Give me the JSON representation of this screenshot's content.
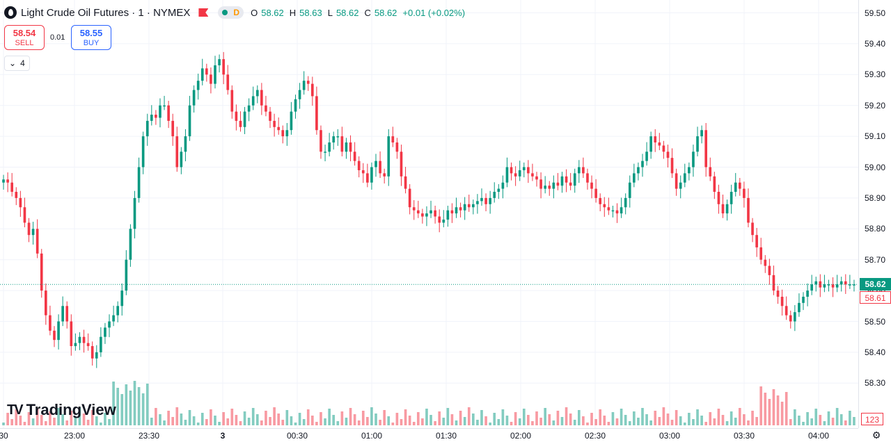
{
  "header": {
    "symbol_title": "Light Crude Oil Futures · 1 · NYMEX",
    "status_delayed": "D",
    "ohlc": [
      {
        "k": "O",
        "v": "58.62"
      },
      {
        "k": "H",
        "v": "58.63"
      },
      {
        "k": "L",
        "v": "58.62"
      },
      {
        "k": "C",
        "v": "58.62"
      }
    ],
    "change": "+0.01 (+0.02%)"
  },
  "trade": {
    "sell_price": "58.54",
    "sell_label": "SELL",
    "spread": "0.01",
    "buy_price": "58.55",
    "buy_label": "BUY",
    "indicator_count": "4"
  },
  "watermark": "TradingView",
  "price_scale": {
    "labels": [
      "59.50",
      "59.40",
      "59.30",
      "59.20",
      "59.10",
      "59.00",
      "58.90",
      "58.80",
      "58.70",
      "58.60",
      "58.50",
      "58.40",
      "58.30"
    ],
    "last_price": "58.62",
    "bid_price": "58.61",
    "volume_value": "123"
  },
  "time_scale": {
    "labels": [
      "30",
      "23:00",
      "23:30",
      "3",
      "00:30",
      "01:00",
      "01:30",
      "02:00",
      "02:30",
      "03:00",
      "03:30",
      "04:00"
    ]
  },
  "colors": {
    "up": "#089981",
    "down": "#f23645",
    "grid": "#f0f3fa",
    "axis_text": "#131722"
  },
  "icons": {
    "symbol": "oil-drop-icon",
    "flag": "flag-icon",
    "settings": "gear-icon",
    "collapse": "chevron-down-icon"
  },
  "chart_data": {
    "type": "candlestick",
    "ylim": [
      58.25,
      59.5
    ],
    "grid": true,
    "closes": [
      58.96,
      58.95,
      58.92,
      58.9,
      58.87,
      58.82,
      58.78,
      58.8,
      58.72,
      58.6,
      58.52,
      58.47,
      58.44,
      58.5,
      58.55,
      58.5,
      58.42,
      58.43,
      58.45,
      58.43,
      58.42,
      58.38,
      58.4,
      58.45,
      58.48,
      58.5,
      58.52,
      58.55,
      58.6,
      58.7,
      58.8,
      58.9,
      59.0,
      59.1,
      59.15,
      59.17,
      59.16,
      59.2,
      59.2,
      59.15,
      59.1,
      59.0,
      59.05,
      59.1,
      59.2,
      59.25,
      59.28,
      59.32,
      59.3,
      59.27,
      59.33,
      59.35,
      59.3,
      59.25,
      59.18,
      59.15,
      59.13,
      59.18,
      59.2,
      59.23,
      59.25,
      59.2,
      59.18,
      59.15,
      59.13,
      59.12,
      59.1,
      59.12,
      59.18,
      59.22,
      59.25,
      59.28,
      59.27,
      59.23,
      59.12,
      59.05,
      59.05,
      59.08,
      59.1,
      59.1,
      59.05,
      59.08,
      59.05,
      59.02,
      58.99,
      58.98,
      58.95,
      59.0,
      59.02,
      58.98,
      58.97,
      59.1,
      59.08,
      59.05,
      58.97,
      58.93,
      58.87,
      58.86,
      58.85,
      58.84,
      58.85,
      58.86,
      58.84,
      58.82,
      58.83,
      58.86,
      58.85,
      58.87,
      58.86,
      58.88,
      58.87,
      58.88,
      58.89,
      58.9,
      58.88,
      58.9,
      58.92,
      58.93,
      58.95,
      59.0,
      58.98,
      58.97,
      58.99,
      59.0,
      58.98,
      58.97,
      58.96,
      58.93,
      58.94,
      58.93,
      58.95,
      58.94,
      58.97,
      58.95,
      58.94,
      58.98,
      59.0,
      58.98,
      58.95,
      58.93,
      58.9,
      58.88,
      58.87,
      58.86,
      58.86,
      58.85,
      58.87,
      58.9,
      58.95,
      58.98,
      59.0,
      59.02,
      59.05,
      59.1,
      59.08,
      59.07,
      59.05,
      59.03,
      58.98,
      58.93,
      58.95,
      58.98,
      59.0,
      59.05,
      59.1,
      59.12,
      59.0,
      58.97,
      58.92,
      58.88,
      58.85,
      58.88,
      58.92,
      58.95,
      58.93,
      58.9,
      58.82,
      58.78,
      58.74,
      58.7,
      58.68,
      58.65,
      58.6,
      58.58,
      58.55,
      58.52,
      58.5,
      58.53,
      58.56,
      58.58,
      58.6,
      58.62,
      58.63,
      58.61,
      58.62,
      58.62,
      58.61,
      58.62,
      58.63,
      58.62,
      58.62,
      58.62
    ]
  }
}
